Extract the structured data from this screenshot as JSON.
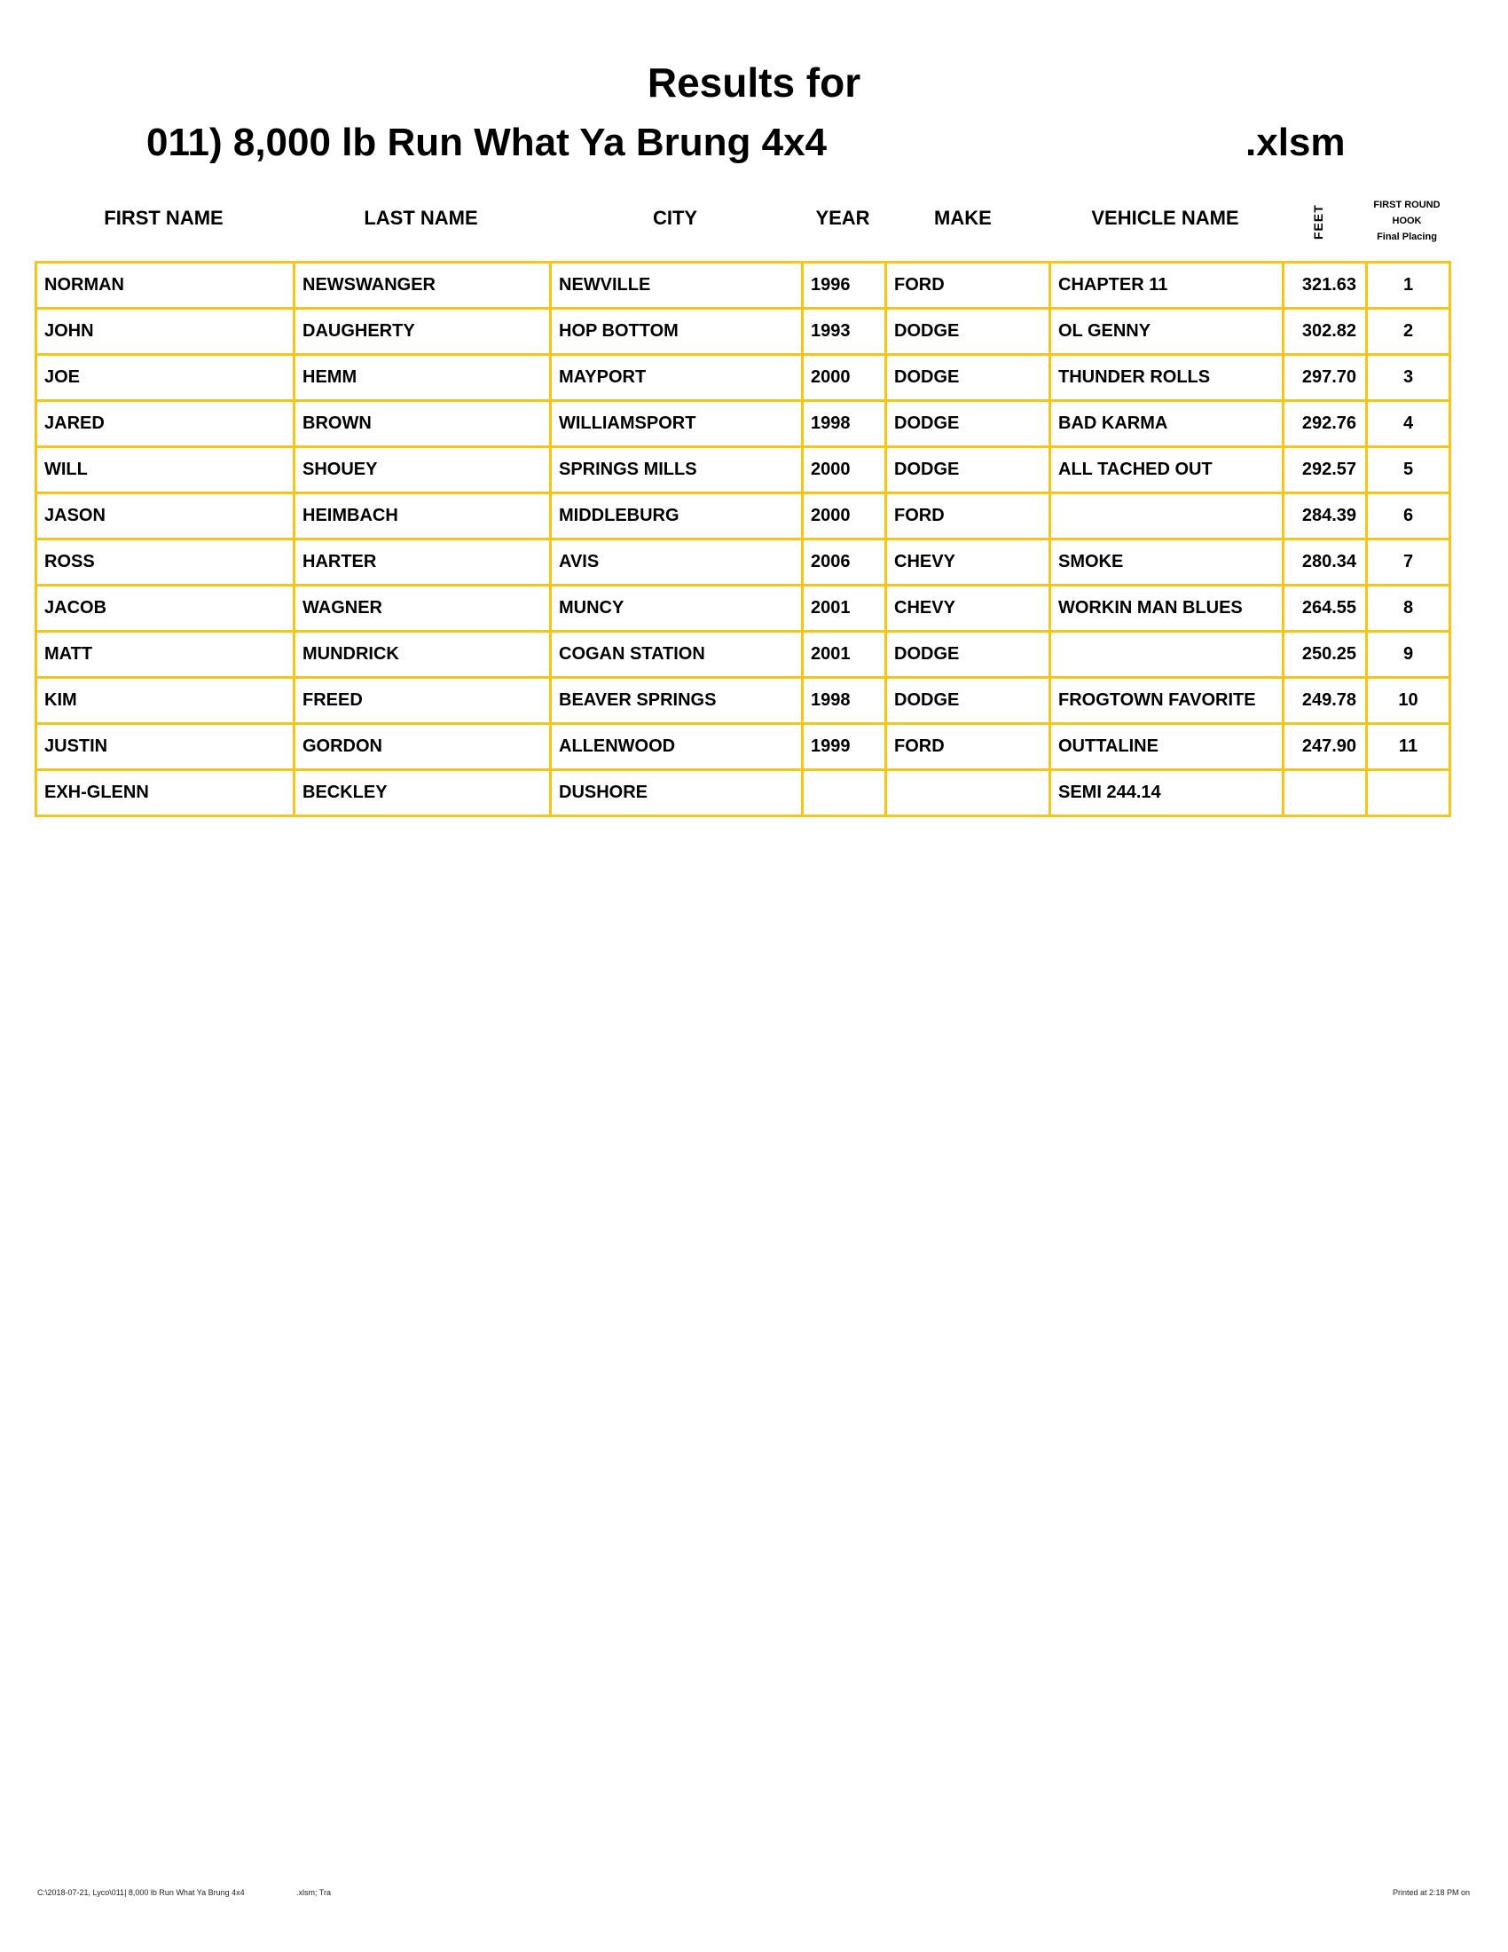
{
  "title": {
    "line1": "Results for",
    "line2": "011) 8,000 lb Run What Ya Brung 4x4",
    "ext": ".xlsm"
  },
  "headers": {
    "first": "FIRST NAME",
    "last": "LAST NAME",
    "city": "CITY",
    "year": "YEAR",
    "make": "MAKE",
    "vehicle": "VEHICLE NAME",
    "feet": "FEET",
    "placing1": "FIRST ROUND",
    "placing2": "HOOK",
    "placing3": "Final Placing"
  },
  "accent_color": "#F5C518",
  "rows": [
    [
      "NORMAN",
      "NEWSWANGER",
      "NEWVILLE",
      "1996",
      "FORD",
      "CHAPTER 11",
      "321.63",
      "1"
    ],
    [
      "JOHN",
      "DAUGHERTY",
      "HOP BOTTOM",
      "1993",
      "DODGE",
      "OL GENNY",
      "302.82",
      "2"
    ],
    [
      "JOE",
      "HEMM",
      "MAYPORT",
      "2000",
      "DODGE",
      "THUNDER ROLLS",
      "297.70",
      "3"
    ],
    [
      "JARED",
      "BROWN",
      "WILLIAMSPORT",
      "1998",
      "DODGE",
      "BAD KARMA",
      "292.76",
      "4"
    ],
    [
      "WILL",
      "SHOUEY",
      "SPRINGS MILLS",
      "2000",
      "DODGE",
      "ALL TACHED OUT",
      "292.57",
      "5"
    ],
    [
      "JASON",
      "HEIMBACH",
      "MIDDLEBURG",
      "2000",
      "FORD",
      "",
      "284.39",
      "6"
    ],
    [
      "ROSS",
      "HARTER",
      "AVIS",
      "2006",
      "CHEVY",
      "SMOKE",
      "280.34",
      "7"
    ],
    [
      "JACOB",
      "WAGNER",
      "MUNCY",
      "2001",
      "CHEVY",
      "WORKIN MAN BLUES",
      "264.55",
      "8"
    ],
    [
      "MATT",
      "MUNDRICK",
      "COGAN STATION",
      "2001",
      "DODGE",
      "",
      "250.25",
      "9"
    ],
    [
      "KIM",
      "FREED",
      "BEAVER SPRINGS",
      "1998",
      "DODGE",
      "FROGTOWN FAVORITE",
      "249.78",
      "10"
    ],
    [
      "JUSTIN",
      "GORDON",
      "ALLENWOOD",
      "1999",
      "FORD",
      "OUTTALINE",
      "247.90",
      "11"
    ],
    [
      "EXH-GLENN",
      "BECKLEY",
      "DUSHORE",
      "",
      "",
      "SEMI  244.14",
      "",
      ""
    ]
  ],
  "footer": {
    "path": "C:\\2018-07-21, Lyco\\011| 8,000 lb Run What Ya Brung 4x4",
    "ext": ".xlsm;  Tra",
    "printed": "Printed at 2:18 PM on"
  }
}
